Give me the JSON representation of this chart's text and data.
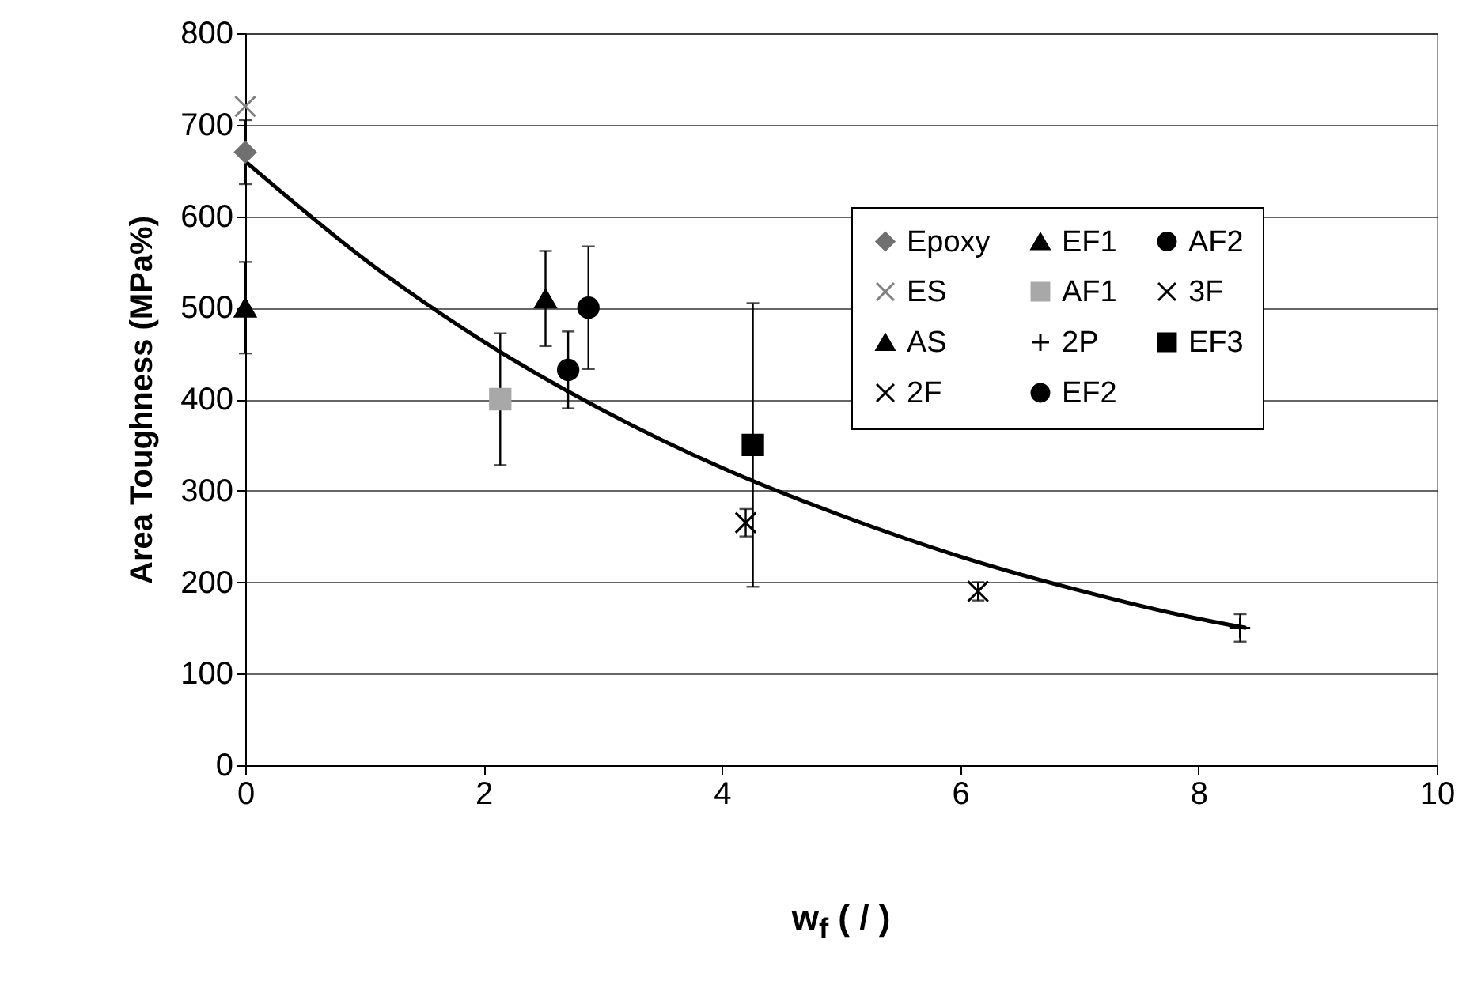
{
  "chart_data": {
    "type": "scatter",
    "xlabel": "w$_{f}$ ( / )",
    "ylabel": "Area Toughness (MPa%)",
    "xlim": [
      0,
      10
    ],
    "xticks": [
      0,
      2,
      4,
      6,
      8,
      10
    ],
    "ylim": [
      0,
      800
    ],
    "yticks": [
      0,
      100,
      200,
      300,
      400,
      500,
      600,
      700,
      800
    ],
    "grid": "y",
    "legend": "top right",
    "series": [
      {
        "name": "Epoxy",
        "color": "#707070",
        "marker": "diamond",
        "x": [
          0
        ],
        "values": [
          670
        ],
        "errors": [
          35
        ]
      },
      {
        "name": "ES",
        "color": "#808080",
        "marker": "cross",
        "x": [
          0
        ],
        "values": [
          720
        ],
        "errors": [
          null
        ]
      },
      {
        "name": "AS",
        "color": "#000000",
        "marker": "triangle",
        "x": [
          0
        ],
        "values": [
          500
        ],
        "errors": [
          50
        ]
      },
      {
        "name": "2F",
        "color": "#000000",
        "marker": "cross",
        "x": [
          4.2
        ],
        "values": [
          265
        ],
        "errors": [
          15
        ]
      },
      {
        "name": "EF1",
        "color": "#000000",
        "marker": "triangle",
        "x": [
          2.52
        ],
        "values": [
          510
        ],
        "errors": [
          52
        ]
      },
      {
        "name": "AF1",
        "color": "#a8a8a8",
        "marker": "square",
        "x": [
          2.14
        ],
        "values": [
          400
        ],
        "errors": [
          72
        ]
      },
      {
        "name": "2P",
        "color": "#000000",
        "marker": "plus",
        "x": [
          8.35
        ],
        "values": [
          150
        ],
        "errors": [
          15
        ]
      },
      {
        "name": "EF2",
        "color": "#000000",
        "marker": "circle",
        "x": [
          2.71
        ],
        "values": [
          432
        ],
        "errors": [
          42
        ]
      },
      {
        "name": "AF2",
        "color": "#000000",
        "marker": "circle",
        "x": [
          2.88
        ],
        "values": [
          500
        ],
        "errors": [
          67
        ]
      },
      {
        "name": "3F",
        "color": "#000000",
        "marker": "cross",
        "x": [
          6.15
        ],
        "values": [
          190
        ],
        "errors": [
          10
        ]
      },
      {
        "name": "EF3",
        "color": "#000000",
        "marker": "square",
        "x": [
          4.26
        ],
        "values": [
          350
        ],
        "errors": [
          155
        ]
      },
      {
        "type": "line",
        "color": "#000000",
        "x": [
          0,
          1,
          2,
          3,
          4,
          5,
          6,
          7,
          8,
          8.4
        ],
        "values": [
          660,
          553,
          463,
          388,
          325,
          273,
          228,
          191,
          160,
          150
        ]
      }
    ]
  }
}
